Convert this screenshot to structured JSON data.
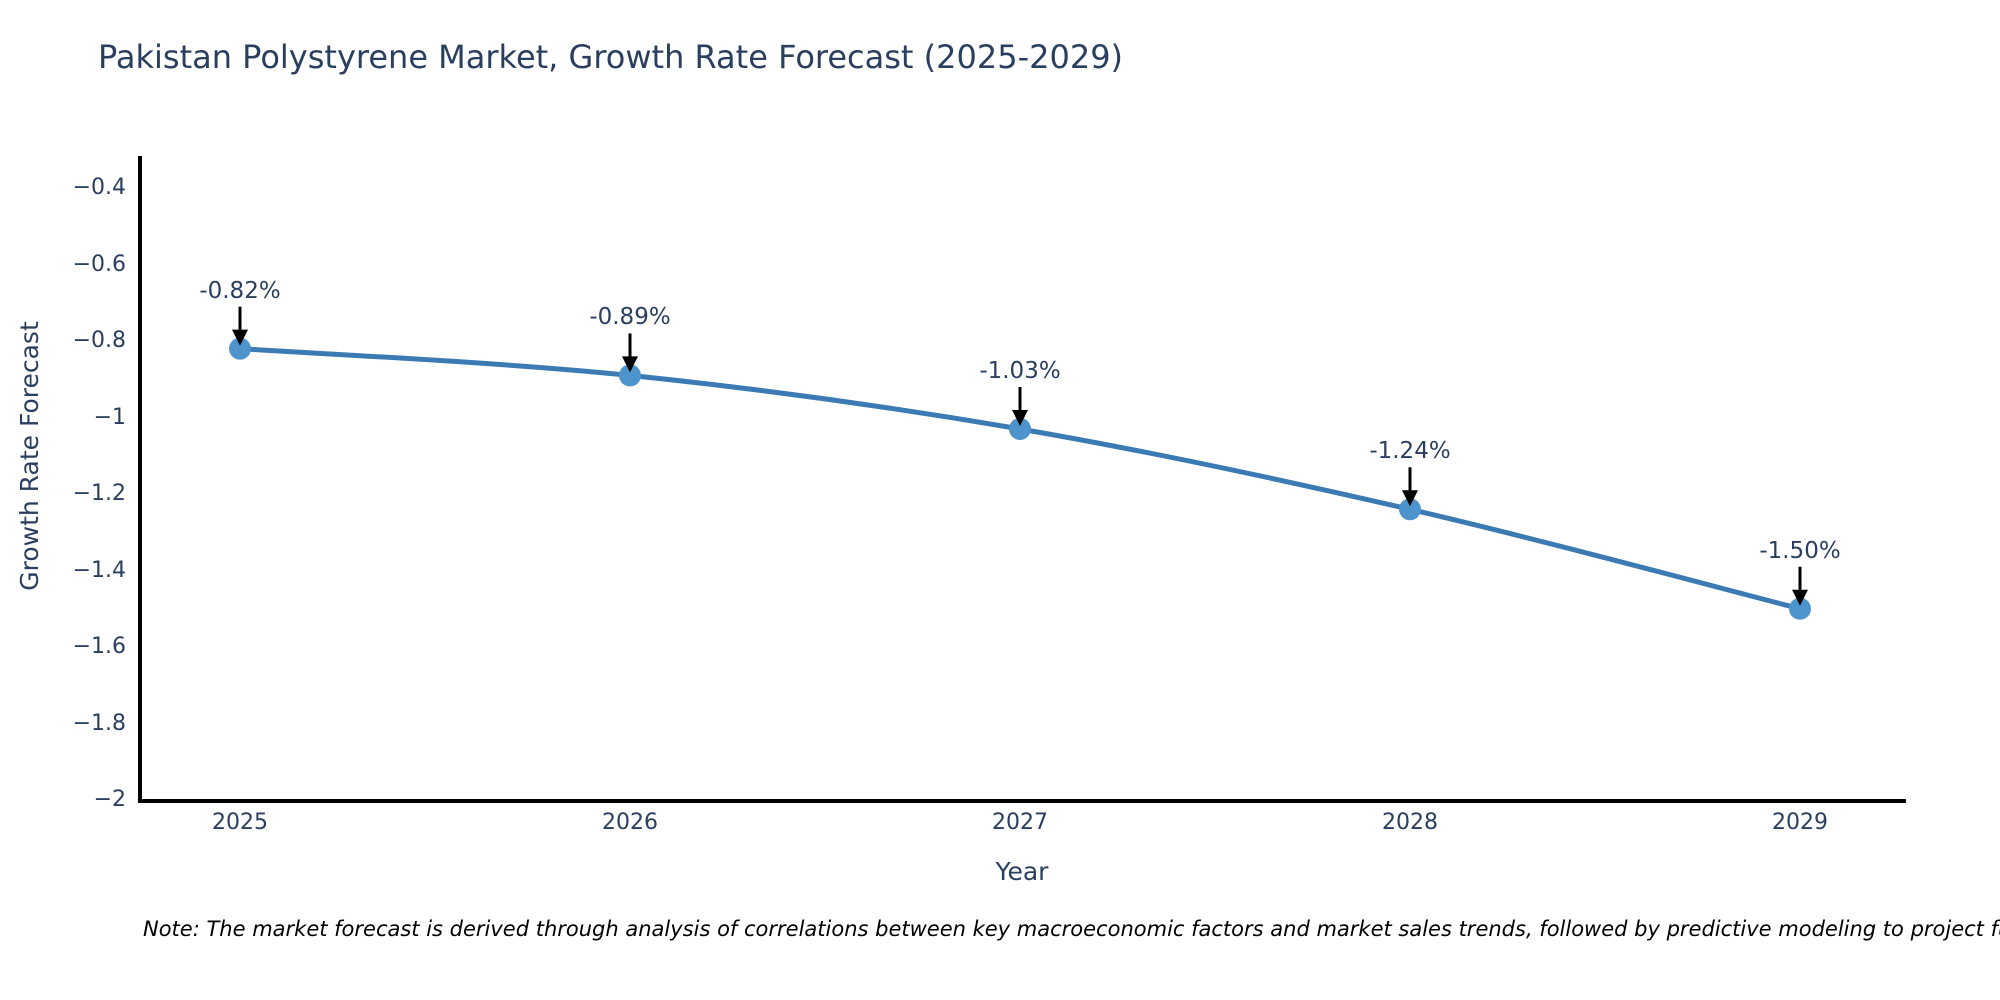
{
  "chart_data": {
    "type": "line",
    "title": "Pakistan Polystyrene Market, Growth Rate Forecast (2025-2029)",
    "xlabel": "Year",
    "ylabel": "Growth Rate Forecast",
    "x": [
      2025,
      2026,
      2027,
      2028,
      2029
    ],
    "x_tick_labels": [
      "2025",
      "2026",
      "2027",
      "2028",
      "2029"
    ],
    "series": [
      {
        "name": "Growth Rate Forecast",
        "values": [
          -0.82,
          -0.89,
          -1.03,
          -1.24,
          -1.5
        ]
      }
    ],
    "point_labels": [
      "-0.82%",
      "-0.89%",
      "-1.03%",
      "-1.24%",
      "-1.50%"
    ],
    "y_ticks": [
      -0.4,
      -0.6,
      -0.8,
      -1,
      -1.2,
      -1.4,
      -1.6,
      -1.8,
      -2
    ],
    "y_tick_labels": [
      "−0.4",
      "−0.6",
      "−0.8",
      "−1",
      "−1.2",
      "−1.4",
      "−1.6",
      "−1.8",
      "−2"
    ],
    "ylim": [
      -2,
      -0.32
    ],
    "grid": false,
    "legend_position": "none",
    "line_color": "#3c7ab3",
    "marker_color": "#4e94cc",
    "axis_color": "#000000",
    "text_color": "#2a3f5f",
    "annotation_arrow_color": "#000000"
  },
  "note": "Note: The market forecast is derived through analysis of correlations between key macroeconomic factors and market sales trends, followed by predictive modeling to project future sales"
}
